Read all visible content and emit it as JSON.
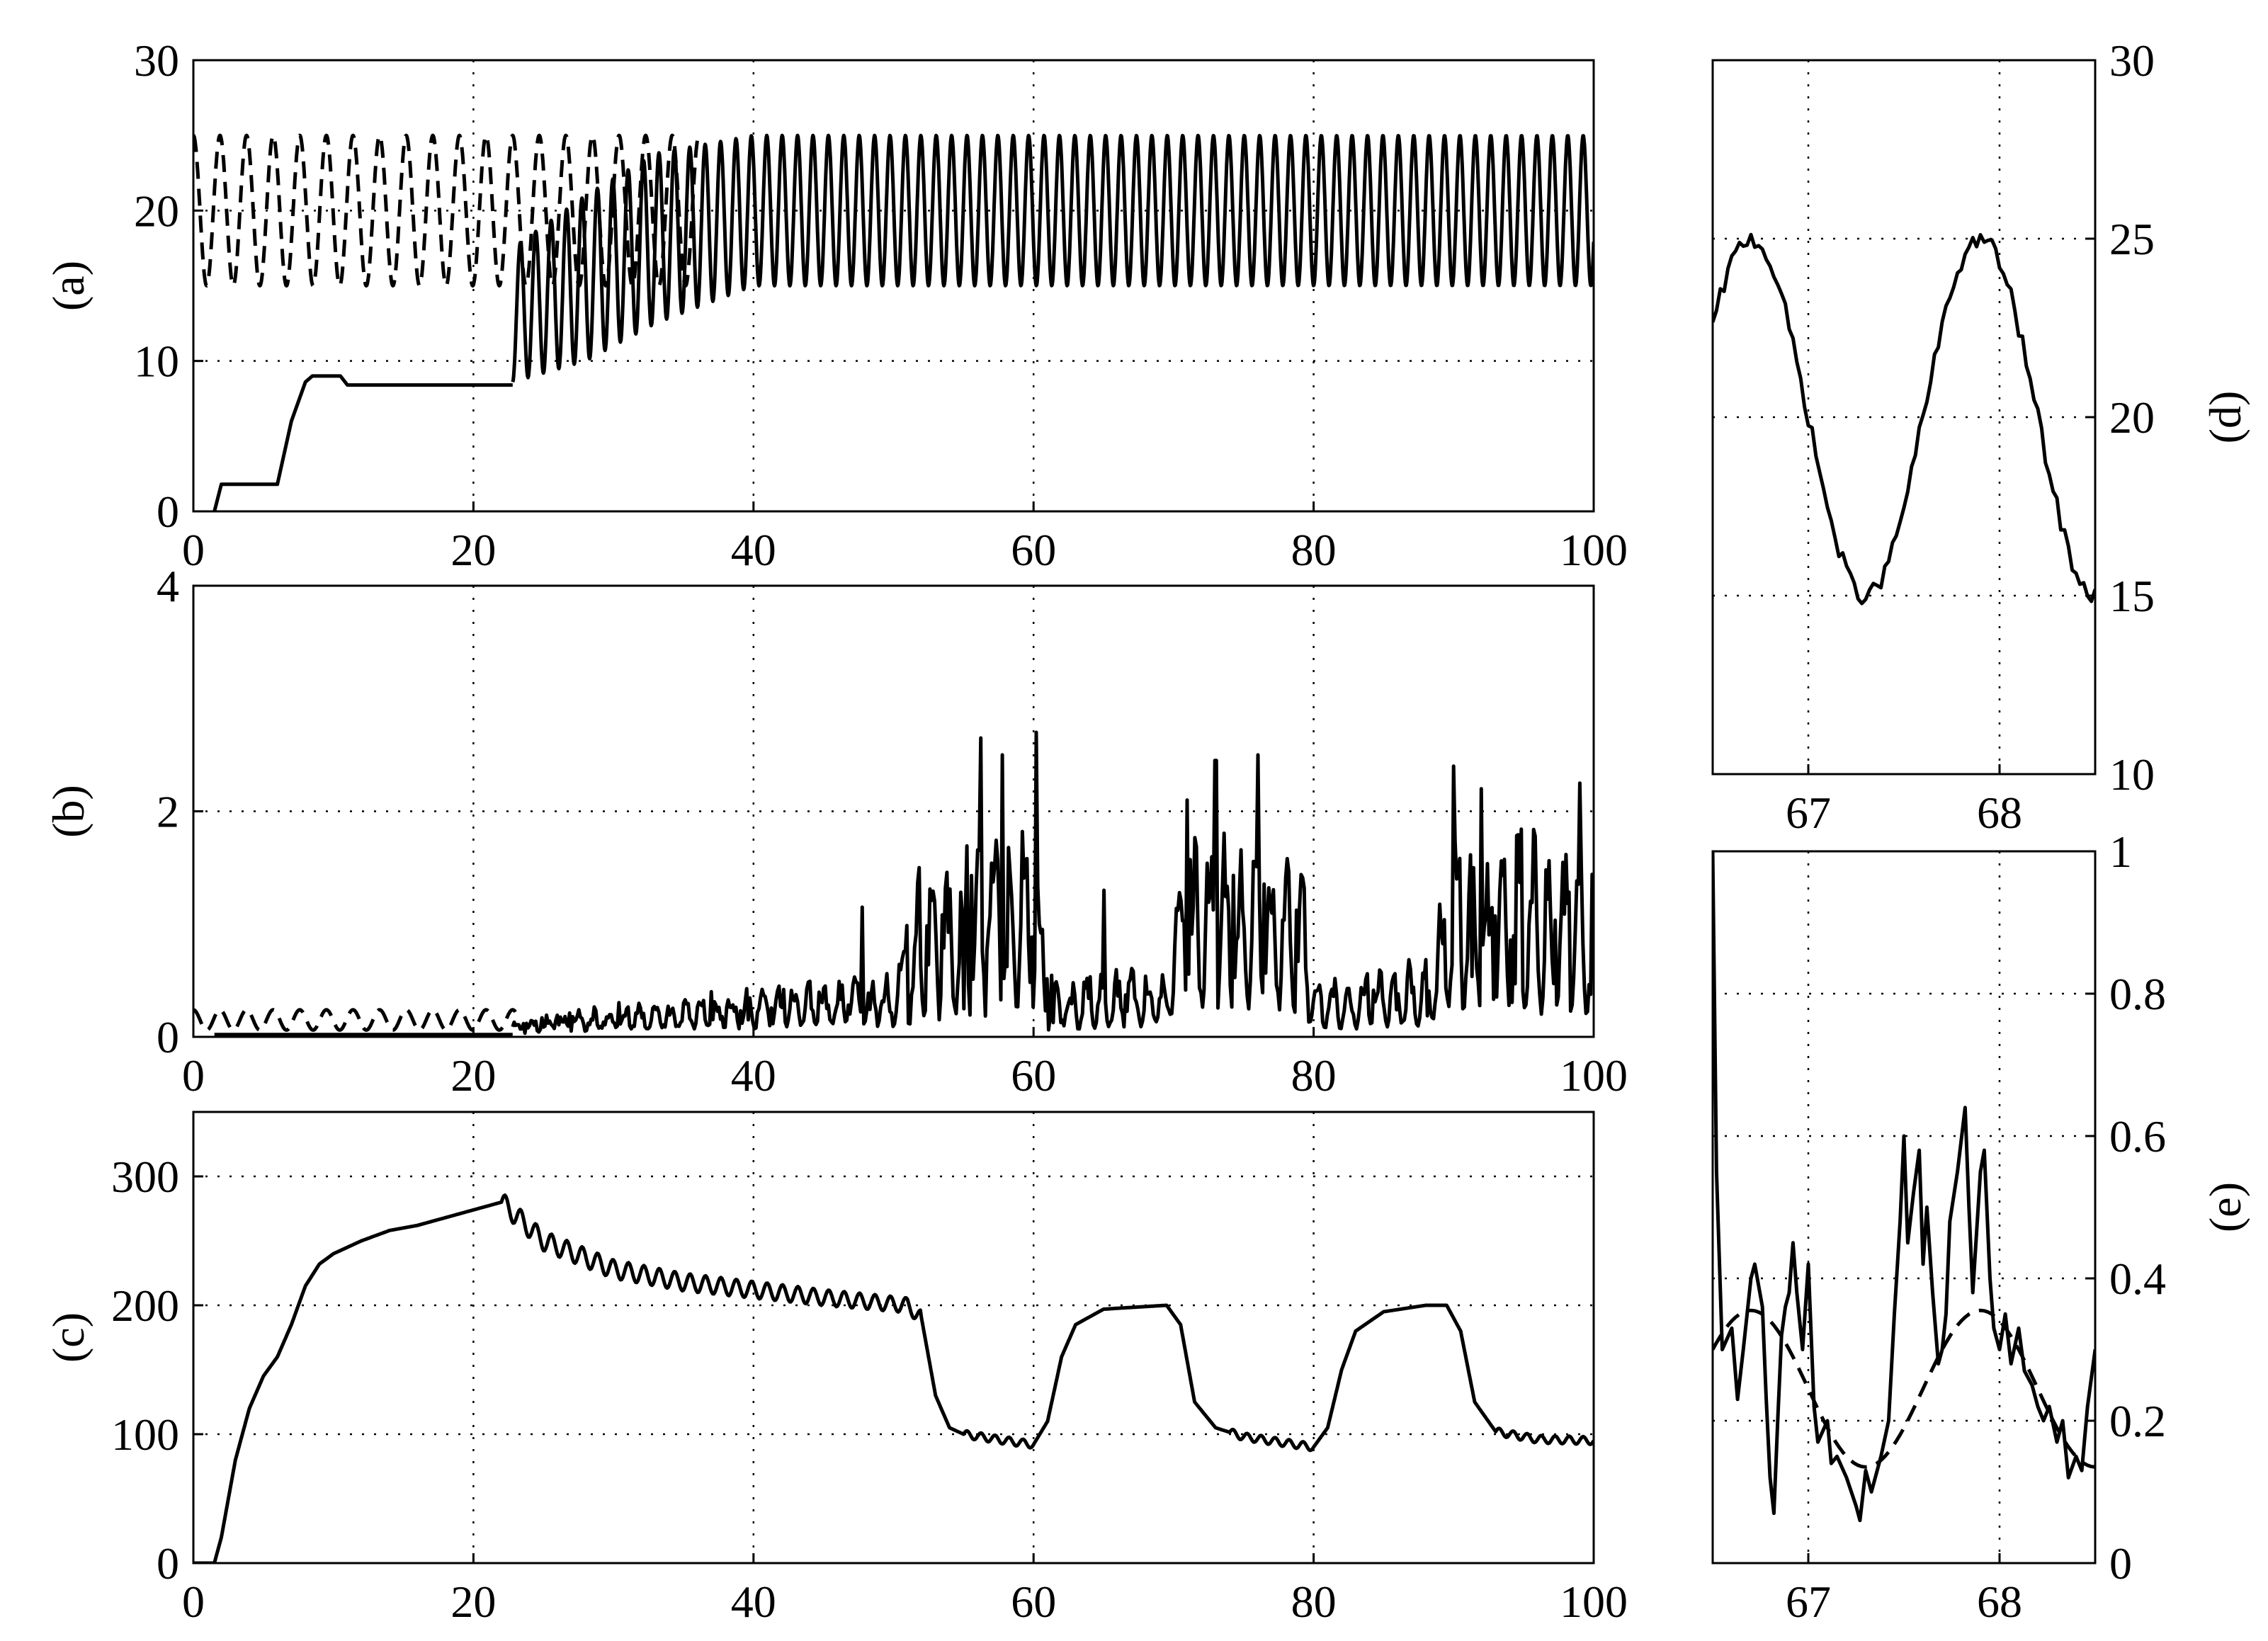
{
  "chart_data": [
    {
      "id": "a",
      "type": "line",
      "panel_label": "(a)",
      "label_side": "left",
      "xlim": [
        0,
        100
      ],
      "ylim": [
        0,
        30
      ],
      "xticks": [
        0,
        20,
        40,
        60,
        80,
        100
      ],
      "yticks": [
        0,
        10,
        20,
        30
      ],
      "grid": true,
      "series": [
        {
          "style": "dashed",
          "kind": "sine",
          "start": 0,
          "end": 36,
          "mean": 20,
          "amp": 5,
          "period": 1.9
        },
        {
          "style": "solid",
          "kind": "points",
          "points": [
            [
              1.5,
              0
            ],
            [
              2,
              1.8
            ],
            [
              6,
              1.8
            ],
            [
              7,
              6
            ],
            [
              8,
              8.6
            ],
            [
              8.5,
              9
            ],
            [
              10.5,
              9
            ],
            [
              11,
              8.4
            ],
            [
              22.8,
              8.4
            ]
          ]
        },
        {
          "style": "solid",
          "kind": "growing-sine",
          "start": 22.8,
          "end": 100,
          "period": 1.1,
          "envelope": [
            [
              22.8,
              8.6,
              17.5
            ],
            [
              28,
              10,
              21
            ],
            [
              33,
              12.5,
              23.8
            ],
            [
              40,
              15,
              25
            ],
            [
              100,
              15,
              25
            ]
          ]
        }
      ]
    },
    {
      "id": "b",
      "type": "line",
      "panel_label": "(b)",
      "label_side": "left",
      "xlim": [
        0,
        100
      ],
      "ylim": [
        0,
        4
      ],
      "xticks": [
        0,
        20,
        40,
        60,
        80,
        100
      ],
      "yticks": [
        0,
        2,
        4
      ],
      "grid": true,
      "series": [
        {
          "style": "dashed",
          "kind": "sine",
          "start": 0,
          "end": 23,
          "mean": 0.15,
          "amp": 0.09,
          "period": 1.9
        },
        {
          "style": "solid",
          "kind": "points",
          "points": [
            [
              1.5,
              0.02
            ],
            [
              22.8,
              0.02
            ]
          ]
        },
        {
          "style": "solid",
          "kind": "bursty",
          "start": 22.8,
          "end": 100,
          "period": 1.1,
          "envelope": [
            [
              22.8,
              0.05,
              0.15
            ],
            [
              30,
              0.1,
              0.3
            ],
            [
              40,
              0.12,
              0.45
            ],
            [
              50,
              0.15,
              0.6
            ],
            [
              51.5,
              0.2,
              1.4
            ],
            [
              60,
              0.3,
              2.4
            ],
            [
              61,
              0.1,
              0.6
            ],
            [
              69.5,
              0.15,
              0.7
            ],
            [
              70.5,
              0.4,
              2.0
            ],
            [
              79,
              0.35,
              2.0
            ],
            [
              80,
              0.1,
              0.6
            ],
            [
              88.5,
              0.15,
              0.75
            ],
            [
              89.5,
              0.3,
              1.9
            ],
            [
              100,
              0.3,
              2.0
            ]
          ],
          "spikes": [
            [
              47.8,
              1.15
            ],
            [
              51.8,
              1.5
            ],
            [
              56.2,
              2.65
            ],
            [
              57.8,
              2.5
            ],
            [
              60.2,
              2.7
            ],
            [
              65,
              1.3
            ],
            [
              71,
              2.1
            ],
            [
              73,
              2.45
            ],
            [
              76,
              2.5
            ],
            [
              90,
              2.4
            ],
            [
              92,
              2.2
            ],
            [
              99,
              2.25
            ]
          ]
        }
      ]
    },
    {
      "id": "c",
      "type": "line",
      "panel_label": "(c)",
      "label_side": "left",
      "xlim": [
        0,
        100
      ],
      "ylim": [
        0,
        350
      ],
      "xticks": [
        0,
        20,
        40,
        60,
        80,
        100
      ],
      "yticks": [
        0,
        100,
        200,
        300
      ],
      "grid": true,
      "series": [
        {
          "style": "solid",
          "kind": "points",
          "ripple": [
            22,
            52,
            1.1,
            8,
            0.96
          ],
          "points": [
            [
              0,
              0
            ],
            [
              1.5,
              0
            ],
            [
              2,
              20
            ],
            [
              3,
              80
            ],
            [
              4,
              120
            ],
            [
              5,
              145
            ],
            [
              6,
              160
            ],
            [
              7,
              185
            ],
            [
              8,
              215
            ],
            [
              9,
              232
            ],
            [
              10,
              240
            ],
            [
              12,
              250
            ],
            [
              14,
              258
            ],
            [
              16,
              262
            ],
            [
              18,
              268
            ],
            [
              20,
              274
            ],
            [
              22,
              280
            ],
            [
              25,
              250
            ],
            [
              30,
              228
            ],
            [
              35,
              218
            ],
            [
              40,
              212
            ],
            [
              45,
              206
            ],
            [
              51,
              200
            ],
            [
              52,
              190
            ],
            [
              53,
              130
            ],
            [
              54,
              105
            ],
            [
              55,
              100
            ],
            [
              58,
              95
            ],
            [
              60,
              92
            ],
            [
              61,
              110
            ],
            [
              62,
              160
            ],
            [
              63,
              185
            ],
            [
              65,
              197
            ],
            [
              69.5,
              200
            ],
            [
              70.5,
              185
            ],
            [
              71.5,
              125
            ],
            [
              73,
              105
            ],
            [
              75,
              98
            ],
            [
              80,
              90
            ],
            [
              81,
              105
            ],
            [
              82,
              150
            ],
            [
              83,
              180
            ],
            [
              85,
              195
            ],
            [
              88,
              200
            ],
            [
              89.5,
              200
            ],
            [
              90.5,
              180
            ],
            [
              91.5,
              125
            ],
            [
              93,
              102
            ],
            [
              96,
              96
            ],
            [
              100,
              95
            ]
          ]
        }
      ]
    },
    {
      "id": "d",
      "type": "line",
      "panel_label": "(d)",
      "label_side": "right",
      "xlim": [
        66.5,
        68.5
      ],
      "ylim": [
        10,
        30
      ],
      "xticks": [
        67,
        68
      ],
      "yticks": [
        10,
        15,
        20,
        25,
        30
      ],
      "grid": true,
      "series": [
        {
          "style": "solid",
          "kind": "sine-phase",
          "start": 66.5,
          "end": 68.5,
          "mean": 20,
          "amp": 5,
          "period": 1.2,
          "peak_at": 66.7,
          "noise": 0.25
        }
      ]
    },
    {
      "id": "e",
      "type": "line",
      "panel_label": "(e)",
      "label_side": "right",
      "xlim": [
        66.5,
        68.5
      ],
      "ylim": [
        0,
        1
      ],
      "xticks": [
        67,
        68
      ],
      "yticks": [
        0,
        0.2,
        0.4,
        0.6,
        0.8,
        1
      ],
      "grid": true,
      "series": [
        {
          "style": "dashed",
          "kind": "sine-phase",
          "start": 66.5,
          "end": 68.5,
          "mean": 0.245,
          "amp": 0.11,
          "period": 1.2,
          "peak_at": 66.7,
          "noise": 0
        },
        {
          "style": "solid",
          "kind": "points",
          "points": [
            [
              66.5,
              1.0
            ],
            [
              66.52,
              0.55
            ],
            [
              66.55,
              0.3
            ],
            [
              66.6,
              0.33
            ],
            [
              66.63,
              0.23
            ],
            [
              66.66,
              0.3
            ],
            [
              66.7,
              0.4
            ],
            [
              66.72,
              0.42
            ],
            [
              66.76,
              0.36
            ],
            [
              66.78,
              0.23
            ],
            [
              66.8,
              0.12
            ],
            [
              66.82,
              0.07
            ],
            [
              66.84,
              0.2
            ],
            [
              66.86,
              0.32
            ],
            [
              66.88,
              0.36
            ],
            [
              66.9,
              0.38
            ],
            [
              66.92,
              0.45
            ],
            [
              66.94,
              0.38
            ],
            [
              66.97,
              0.3
            ],
            [
              67.0,
              0.42
            ],
            [
              67.03,
              0.22
            ],
            [
              67.05,
              0.17
            ],
            [
              67.1,
              0.2
            ],
            [
              67.12,
              0.14
            ],
            [
              67.15,
              0.15
            ],
            [
              67.2,
              0.12
            ],
            [
              67.25,
              0.08
            ],
            [
              67.27,
              0.06
            ],
            [
              67.3,
              0.13
            ],
            [
              67.33,
              0.1
            ],
            [
              67.38,
              0.15
            ],
            [
              67.42,
              0.2
            ],
            [
              67.45,
              0.35
            ],
            [
              67.48,
              0.48
            ],
            [
              67.5,
              0.6
            ],
            [
              67.52,
              0.45
            ],
            [
              67.55,
              0.52
            ],
            [
              67.58,
              0.58
            ],
            [
              67.6,
              0.42
            ],
            [
              67.62,
              0.5
            ],
            [
              67.65,
              0.38
            ],
            [
              67.68,
              0.28
            ],
            [
              67.7,
              0.3
            ],
            [
              67.72,
              0.35
            ],
            [
              67.74,
              0.48
            ],
            [
              67.78,
              0.55
            ],
            [
              67.82,
              0.64
            ],
            [
              67.84,
              0.5
            ],
            [
              67.86,
              0.38
            ],
            [
              67.9,
              0.55
            ],
            [
              67.92,
              0.58
            ],
            [
              67.95,
              0.4
            ],
            [
              67.97,
              0.33
            ],
            [
              68.0,
              0.3
            ],
            [
              68.03,
              0.35
            ],
            [
              68.06,
              0.28
            ],
            [
              68.1,
              0.33
            ],
            [
              68.13,
              0.27
            ],
            [
              68.17,
              0.25
            ],
            [
              68.2,
              0.22
            ],
            [
              68.23,
              0.2
            ],
            [
              68.26,
              0.22
            ],
            [
              68.3,
              0.17
            ],
            [
              68.33,
              0.2
            ],
            [
              68.36,
              0.12
            ],
            [
              68.4,
              0.15
            ],
            [
              68.43,
              0.13
            ],
            [
              68.46,
              0.22
            ],
            [
              68.5,
              0.3
            ]
          ]
        }
      ]
    }
  ]
}
